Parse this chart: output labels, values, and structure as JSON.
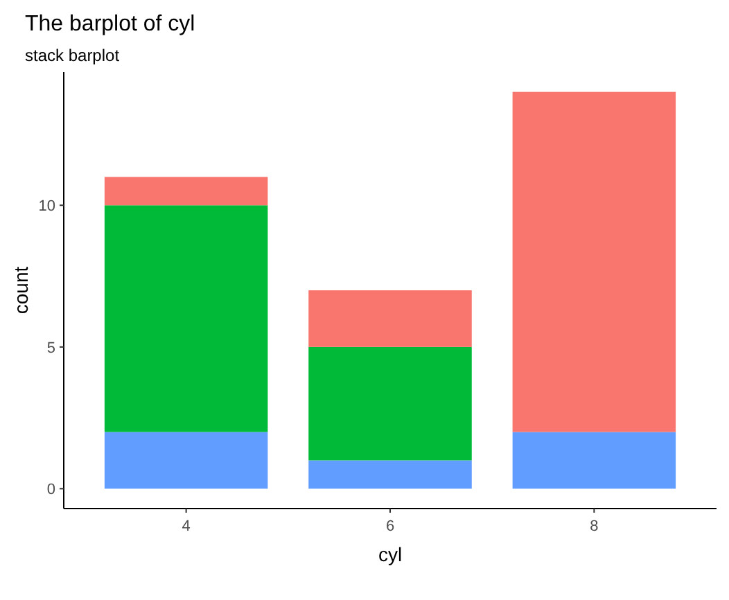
{
  "chart_data": {
    "type": "bar",
    "title": "The barplot of cyl",
    "subtitle": "stack barplot",
    "xlabel": "cyl",
    "ylabel": "count",
    "categories": [
      "4",
      "6",
      "8"
    ],
    "stacked": true,
    "series": [
      {
        "color": "#619cff",
        "values": [
          2,
          1,
          2
        ]
      },
      {
        "color": "#00ba38",
        "values": [
          8,
          4,
          0
        ]
      },
      {
        "color": "#f8766d",
        "values": [
          1,
          2,
          12
        ]
      }
    ],
    "ylim": [
      -0.7,
      14.7
    ],
    "yticks": [
      0,
      5,
      10
    ],
    "grid": false
  }
}
